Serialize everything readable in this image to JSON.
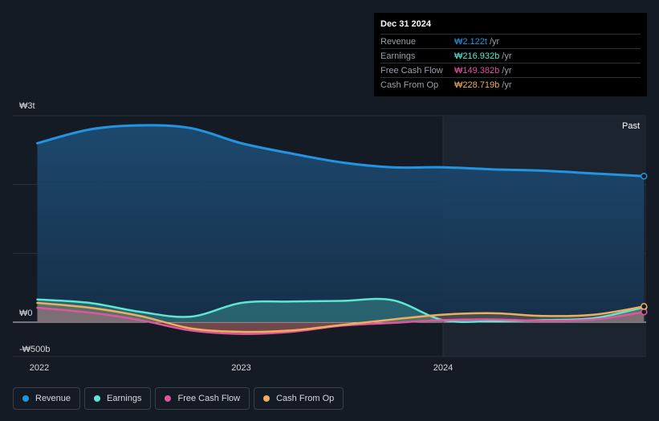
{
  "tooltip": {
    "date": "Dec 31 2024",
    "rows": [
      {
        "name": "Revenue",
        "value": "₩2.122t",
        "unit": "/yr",
        "color": "#2394df"
      },
      {
        "name": "Earnings",
        "value": "₩216.932b",
        "unit": "/yr",
        "color": "#5ee6d2"
      },
      {
        "name": "Free Cash Flow",
        "value": "₩149.382b",
        "unit": "/yr",
        "color": "#e0569e"
      },
      {
        "name": "Cash From Op",
        "value": "₩228.719b",
        "unit": "/yr",
        "color": "#eeae5e"
      }
    ]
  },
  "legend": [
    {
      "label": "Revenue",
      "color": "#2394df"
    },
    {
      "label": "Earnings",
      "color": "#5ee6d2"
    },
    {
      "label": "Free Cash Flow",
      "color": "#e0569e"
    },
    {
      "label": "Cash From Op",
      "color": "#eeae5e"
    }
  ],
  "chart_data": {
    "type": "area",
    "y_tick_labels": [
      "₩3t",
      "₩0",
      "-₩500b"
    ],
    "x_tick_labels": [
      "2022",
      "2023",
      "2024"
    ],
    "ylim": [
      -500,
      3000
    ],
    "y_unit": "₩ billions",
    "past_label": "Past",
    "x": [
      2021.99,
      2022.25,
      2022.5,
      2022.75,
      2023.0,
      2023.25,
      2023.5,
      2023.75,
      2024.0,
      2024.25,
      2024.5,
      2024.75,
      2024.995
    ],
    "series": [
      {
        "name": "Revenue",
        "color": "#2394df",
        "values": [
          2600,
          2800,
          2860,
          2820,
          2600,
          2450,
          2320,
          2250,
          2250,
          2220,
          2200,
          2160,
          2122
        ]
      },
      {
        "name": "Earnings",
        "color": "#5ee6d2",
        "values": [
          330,
          280,
          150,
          80,
          280,
          300,
          310,
          320,
          30,
          15,
          30,
          60,
          217
        ]
      },
      {
        "name": "Free Cash Flow",
        "color": "#e0569e",
        "values": [
          210,
          140,
          30,
          -120,
          -170,
          -140,
          -50,
          -10,
          30,
          40,
          20,
          40,
          149
        ]
      },
      {
        "name": "Cash From Op",
        "color": "#eeae5e",
        "values": [
          280,
          210,
          90,
          -90,
          -140,
          -120,
          -40,
          40,
          110,
          130,
          90,
          110,
          229
        ]
      }
    ]
  }
}
